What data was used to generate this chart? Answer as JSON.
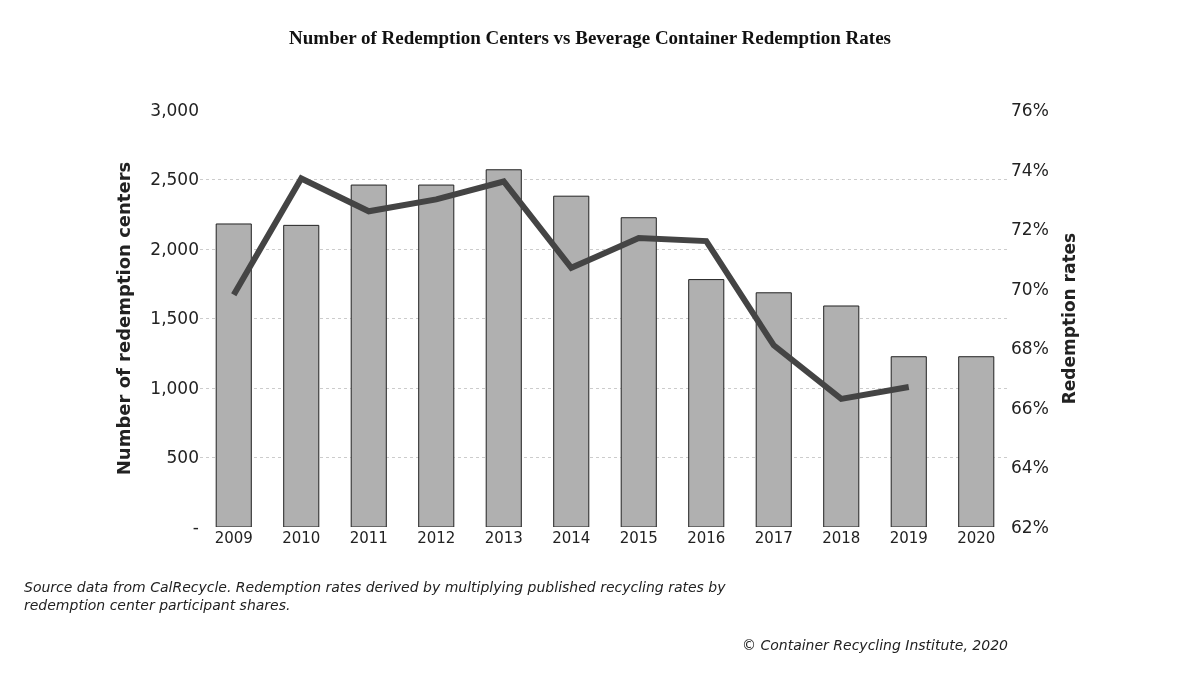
{
  "chart_data": {
    "type": "bar",
    "title": "Number of Redemption Centers vs Beverage Container Redemption Rates",
    "ylabel": "Number of redemption centers",
    "y2label": "Redemption rates",
    "categories": [
      "2009",
      "2010",
      "2011",
      "2012",
      "2013",
      "2014",
      "2015",
      "2016",
      "2017",
      "2018",
      "2019",
      "2020"
    ],
    "series": [
      {
        "type": "bar",
        "color": "#b0b0b0",
        "values": [
          2180,
          2170,
          2460,
          2460,
          2570,
          2380,
          2225,
          1780,
          1685,
          1590,
          1225,
          1225
        ]
      },
      {
        "type": "line",
        "axis": "y2",
        "color": "#444444",
        "values": [
          69.8,
          73.7,
          72.6,
          73.0,
          73.6,
          70.7,
          71.7,
          71.6,
          68.1,
          66.3,
          66.7,
          null
        ]
      }
    ],
    "ylim": [
      0,
      3000
    ],
    "yticks": [
      {
        "value": 0,
        "label": "-"
      },
      {
        "value": 500,
        "label": "500"
      },
      {
        "value": 1000,
        "label": "1,000"
      },
      {
        "value": 1500,
        "label": "1,500"
      },
      {
        "value": 2000,
        "label": "2,000"
      },
      {
        "value": 2500,
        "label": "2,500"
      },
      {
        "value": 3000,
        "label": "3,000"
      }
    ],
    "y2lim": [
      62,
      76
    ],
    "y2ticks": [
      {
        "value": 62,
        "label": "62%"
      },
      {
        "value": 64,
        "label": "64%"
      },
      {
        "value": 66,
        "label": "66%"
      },
      {
        "value": 68,
        "label": "68%"
      },
      {
        "value": 70,
        "label": "70%"
      },
      {
        "value": 72,
        "label": "72%"
      },
      {
        "value": 74,
        "label": "74%"
      },
      {
        "value": 76,
        "label": "76%"
      }
    ],
    "grid": "y",
    "line_style": "solid",
    "marker": "none",
    "annotations": [
      "Source data from CalRecycle. Redemption rates derived by multiplying published recycling rates by redemption center participant shares.",
      "© Container Recycling Institute, 2020"
    ]
  }
}
